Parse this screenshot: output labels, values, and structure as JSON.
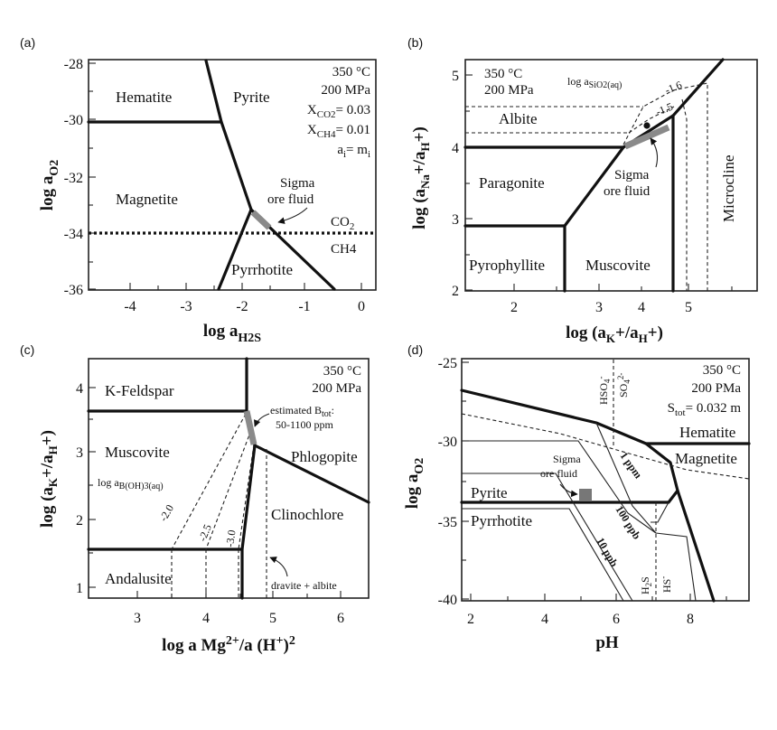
{
  "panel_a": {
    "letter": "(a)",
    "y_ticks": [
      "-28",
      "-30",
      "-32",
      "-34",
      "-36"
    ],
    "x_ticks": [
      "-4",
      "-3",
      "-2",
      "-1",
      "0"
    ],
    "conditions": [
      "350 °C",
      "200 MPa",
      "X",
      "CO2",
      "= 0.03",
      "X",
      "CH4",
      "= 0.01",
      "a",
      "i",
      "= m",
      "i"
    ],
    "fields": [
      "Hematite",
      "Pyrite",
      "Magnetite",
      "Pyrrhotite",
      "CO",
      "2",
      "CH4"
    ],
    "fluid": [
      "Sigma",
      "ore fluid"
    ],
    "ylabel": [
      "log a",
      "O2"
    ],
    "xlabel": [
      "log a",
      "H2S"
    ]
  },
  "panel_b": {
    "letter": "(b)",
    "y_ticks": [
      "5",
      "4",
      "3",
      "2"
    ],
    "x_ticks": [
      "2",
      "3",
      "4",
      "5"
    ],
    "conditions": [
      "350 °C",
      "200 MPa"
    ],
    "silica": [
      "log a",
      "SiO2(aq)"
    ],
    "contours": [
      "-1.6",
      "-1.5"
    ],
    "fields": [
      "Albite",
      "Paragonite",
      "Pyrophyllite",
      "Muscovite",
      "Microcline"
    ],
    "fluid": [
      "Sigma",
      "ore fluid"
    ],
    "ylabel": [
      "log (a",
      "Na",
      "+/a",
      "H",
      "+)"
    ],
    "xlabel": [
      "log (a",
      "K",
      "+/a",
      "H",
      "+)"
    ]
  },
  "panel_c": {
    "letter": "(c)",
    "y_ticks": [
      "4",
      "3",
      "2",
      "1"
    ],
    "x_ticks": [
      "3",
      "4",
      "5",
      "6"
    ],
    "conditions": [
      "350 °C",
      "200 MPa"
    ],
    "boron": [
      "estimated B",
      "tot",
      ":",
      "50-1100 ppm"
    ],
    "boron_label": [
      "log a",
      "B(OH)3(aq)"
    ],
    "contours": [
      "-2.0",
      "-2.5",
      "-3.0"
    ],
    "fields": [
      "K-Feldspar",
      "Muscovite",
      "Phlogopite",
      "Clinochlore",
      "Andalusite"
    ],
    "dravite": "dravite + albite",
    "ylabel": [
      "log (a",
      "K",
      "+/a",
      "H",
      "+)"
    ],
    "xlabel": [
      "log a Mg",
      "2+",
      "/a (H",
      "+",
      ")",
      "2"
    ]
  },
  "panel_d": {
    "letter": "(d)",
    "y_ticks": [
      "-25",
      "-30",
      "-35",
      "-40"
    ],
    "x_ticks": [
      "2",
      "4",
      "6",
      "8"
    ],
    "conditions": [
      "350 °C",
      "200 PMa",
      "S",
      "tot",
      "= 0.032 m"
    ],
    "sulfur_species": [
      "HSO",
      "4",
      "-",
      "SO",
      "4",
      "2-",
      "H",
      "2",
      "S",
      "HS",
      "-"
    ],
    "fields": [
      "Hematite",
      "Magnetite",
      "Pyrite",
      "Pyrrhotite"
    ],
    "contours": [
      "1 ppm",
      "100 ppb",
      "10 ppb"
    ],
    "fluid": [
      "Sigma",
      "ore fluid"
    ],
    "ylabel": [
      "log a",
      "O2"
    ],
    "xlabel": "pH"
  }
}
